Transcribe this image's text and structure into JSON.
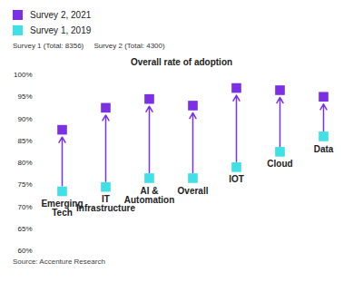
{
  "chart_data": {
    "type": "dumbbell",
    "title": "Overall rate of adoption",
    "subtitle": "Survey 1 (Total: 8356)     Survey 2 (Total: 4300)",
    "source": "Source: Accenture Research",
    "categories": [
      "Emerging\nTech",
      "IT\nInfrastructure",
      "AI &\nAutomation",
      "Overall",
      "IOT",
      "Cloud",
      "Data"
    ],
    "series": [
      {
        "name": "Survey 2, 2021",
        "color": "#7b30e6",
        "marker": "square",
        "values": [
          87.5,
          92.5,
          94.5,
          93,
          97,
          96.5,
          95
        ]
      },
      {
        "name": "Survey 1, 2019",
        "color": "#3fe0e6",
        "marker": "square",
        "values": [
          73.5,
          74.5,
          76.5,
          76.5,
          79,
          82.5,
          86
        ]
      }
    ],
    "ylim": [
      60,
      100
    ],
    "yticks": [
      {
        "value": 60,
        "label": "60%"
      },
      {
        "value": 65,
        "label": "65%"
      },
      {
        "value": 70,
        "label": "70%"
      },
      {
        "value": 75,
        "label": "75%"
      },
      {
        "value": 80,
        "label": "80%"
      },
      {
        "value": 85,
        "label": "85%"
      },
      {
        "value": 90,
        "label": "90%"
      },
      {
        "value": 95,
        "label": "95%"
      },
      {
        "value": 100,
        "label": "100%"
      }
    ],
    "legend": "top-left",
    "grid": false,
    "tick_labels": "y"
  }
}
